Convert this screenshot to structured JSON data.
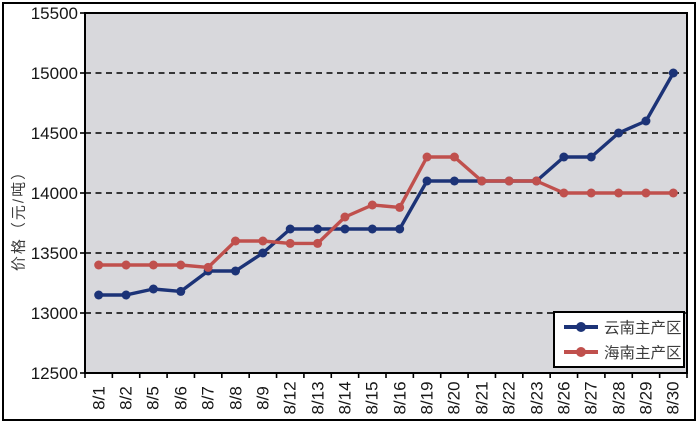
{
  "colors": {
    "plot_background": "#d8d8dc",
    "frame_border": "#000000",
    "gridline": "#000000",
    "series_yunnan": "#1c3377",
    "series_hainan": "#c0504d"
  },
  "chart_data": {
    "type": "line",
    "title": "",
    "xlabel": "",
    "ylabel": "价格（元/吨）",
    "ylim": [
      12500,
      15500
    ],
    "ytick_step": 500,
    "y_ticks": [
      "15500",
      "15000",
      "14500",
      "14000",
      "13500",
      "13000",
      "12500"
    ],
    "grid": "horizontal-dashed",
    "legend_position": "inside-bottom-right",
    "categories": [
      "8/1",
      "8/2",
      "8/5",
      "8/6",
      "8/7",
      "8/8",
      "8/9",
      "8/12",
      "8/13",
      "8/14",
      "8/15",
      "8/16",
      "8/19",
      "8/20",
      "8/21",
      "8/22",
      "8/23",
      "8/26",
      "8/27",
      "8/28",
      "8/29",
      "8/30"
    ],
    "series": [
      {
        "name": "云南主产区",
        "color": "#1c3377",
        "values": [
          13150,
          13150,
          13200,
          13180,
          13350,
          13350,
          13500,
          13700,
          13700,
          13700,
          13700,
          13700,
          14100,
          14100,
          14100,
          14100,
          14100,
          14300,
          14300,
          14500,
          14600,
          15000
        ]
      },
      {
        "name": "海南主产区",
        "color": "#c0504d",
        "values": [
          13400,
          13400,
          13400,
          13400,
          13380,
          13600,
          13600,
          13580,
          13580,
          13800,
          13900,
          13880,
          14300,
          14300,
          14100,
          14100,
          14100,
          14000,
          14000,
          14000,
          14000,
          14000
        ]
      }
    ]
  }
}
